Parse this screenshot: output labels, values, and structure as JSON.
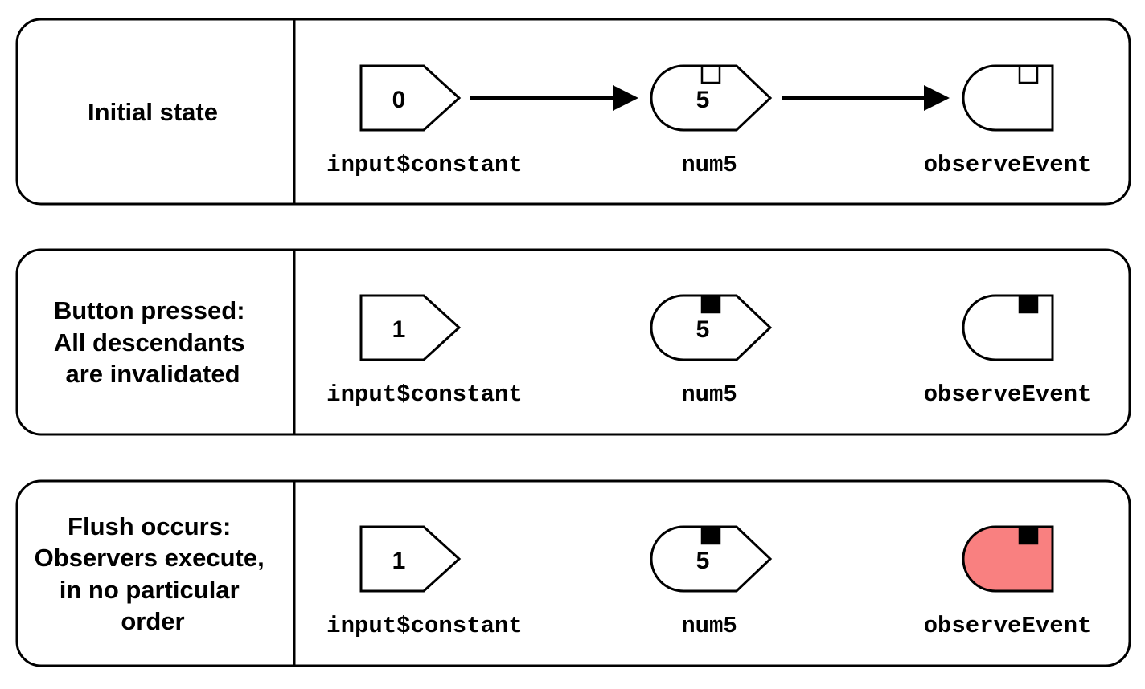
{
  "colors": {
    "stroke": "#000000",
    "fill_default": "#ffffff",
    "fill_executing": "#f98080",
    "flag_filled": "#000000",
    "flag_empty": "#ffffff"
  },
  "rows": [
    {
      "label_lines": [
        "Initial state"
      ],
      "show_arrows": true,
      "nodes": {
        "input": {
          "value": "0",
          "name": "input$constant"
        },
        "reactive": {
          "value": "5",
          "name": "num5",
          "invalidated": false
        },
        "observer": {
          "name": "observeEvent",
          "invalidated": false,
          "executing": false
        }
      }
    },
    {
      "label_lines": [
        "Button pressed:",
        "All descendants",
        "are invalidated"
      ],
      "show_arrows": false,
      "nodes": {
        "input": {
          "value": "1",
          "name": "input$constant"
        },
        "reactive": {
          "value": "5",
          "name": "num5",
          "invalidated": true
        },
        "observer": {
          "name": "observeEvent",
          "invalidated": true,
          "executing": false
        }
      }
    },
    {
      "label_lines": [
        "Flush occurs:",
        "Observers execute,",
        "in no particular",
        "order"
      ],
      "show_arrows": false,
      "nodes": {
        "input": {
          "value": "1",
          "name": "input$constant"
        },
        "reactive": {
          "value": "5",
          "name": "num5",
          "invalidated": true
        },
        "observer": {
          "name": "observeEvent",
          "invalidated": true,
          "executing": true
        }
      }
    }
  ]
}
